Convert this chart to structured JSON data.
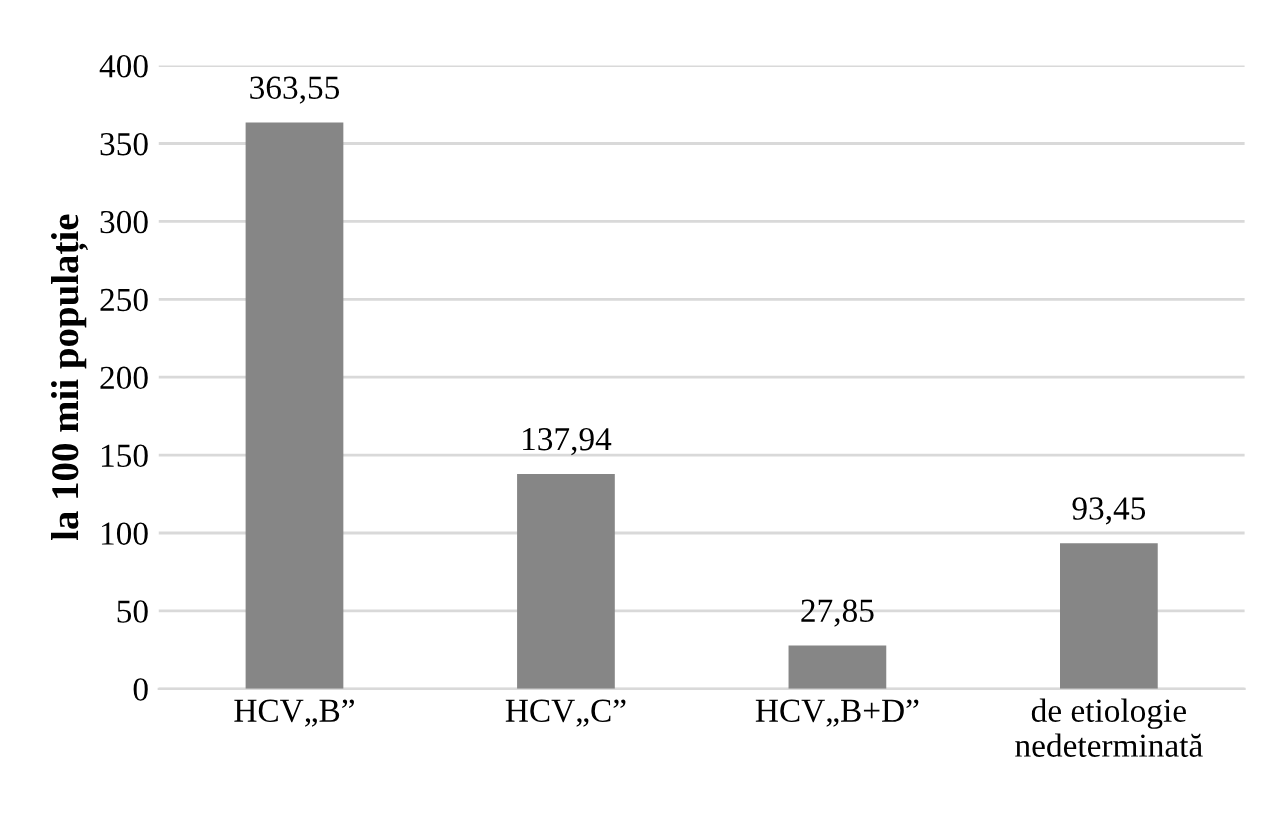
{
  "chart_data": {
    "type": "bar",
    "ylabel": "la 100 mii populație",
    "categories": [
      "HCV„B”",
      "HCV„C”",
      "HCV„B+D”",
      "de etiologie\nnedeterminată"
    ],
    "values": [
      363.55,
      137.94,
      27.85,
      93.45
    ],
    "value_labels": [
      "363,55",
      "137,94",
      "27,85",
      "93,45"
    ],
    "color": "#868686",
    "ylim": [
      0,
      400
    ],
    "yticks": [
      0,
      50,
      100,
      150,
      200,
      250,
      300,
      350,
      400
    ],
    "grid": "y",
    "legend": false
  }
}
